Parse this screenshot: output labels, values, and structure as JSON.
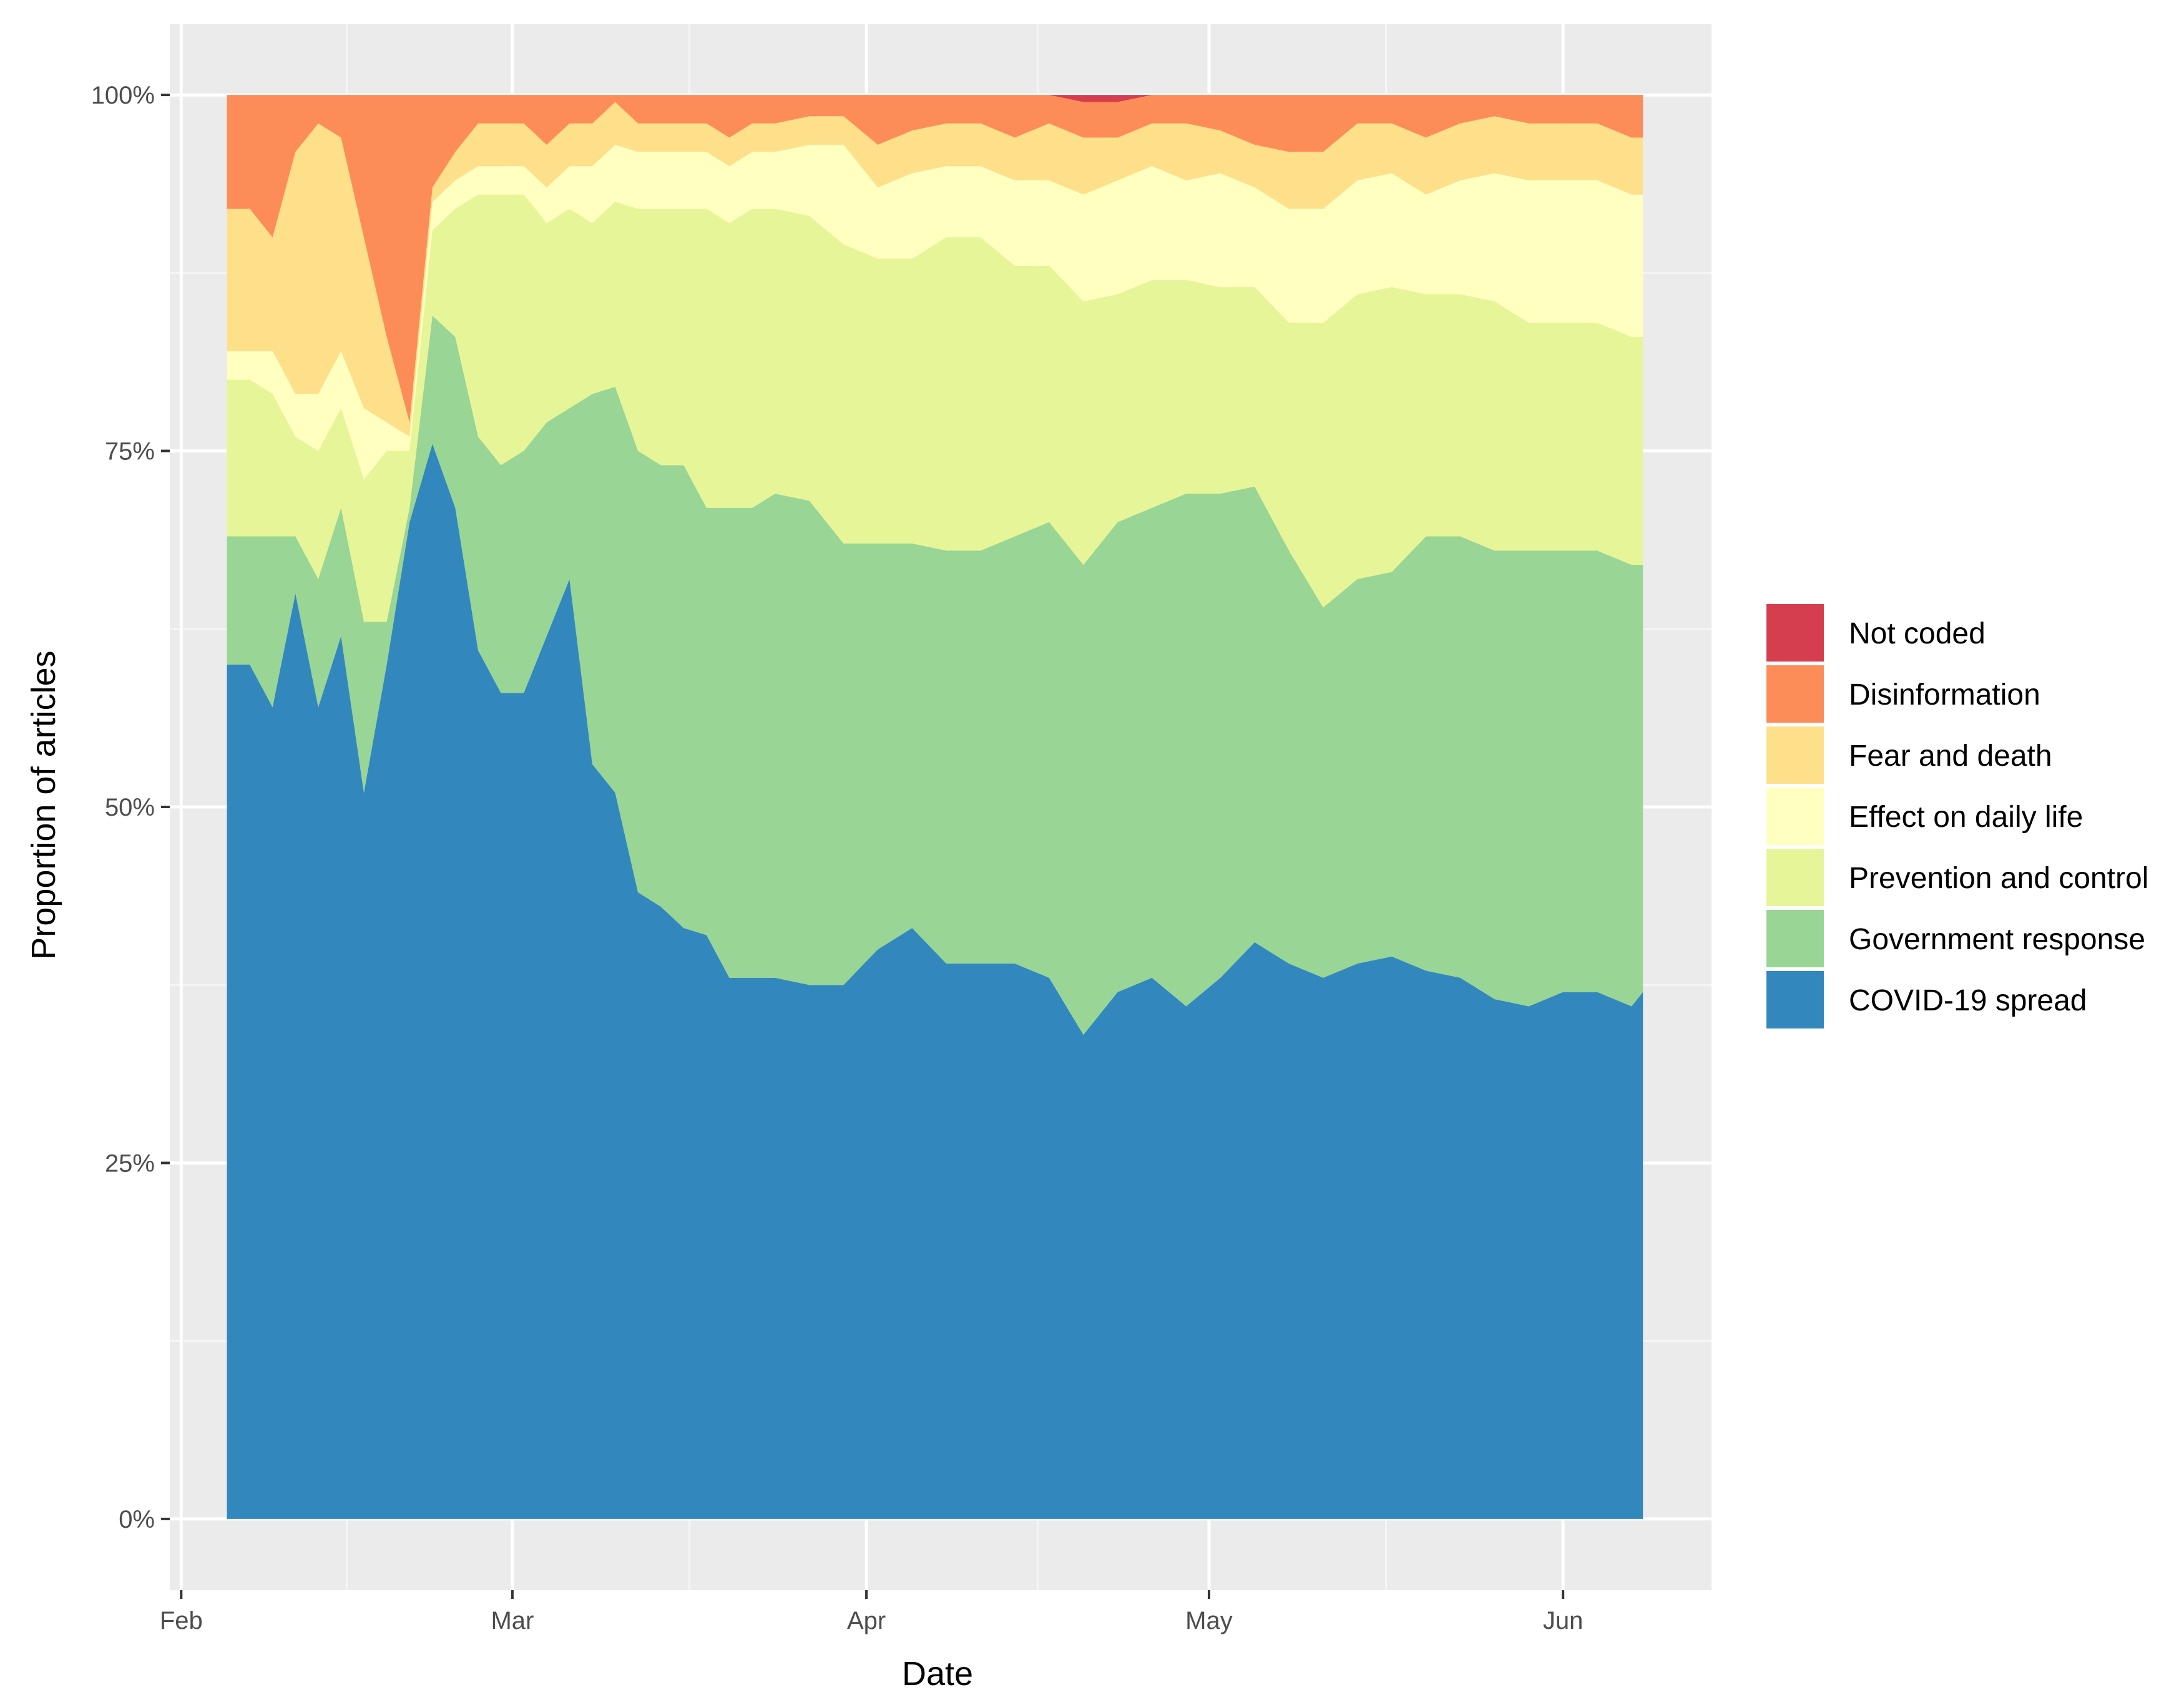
{
  "chart_data": {
    "type": "area",
    "stacked": true,
    "percent": true,
    "title": "",
    "xlabel": "Date",
    "ylabel": "Proportion of articles",
    "ylim": [
      -5,
      105
    ],
    "xlim_day": [
      -1,
      134
    ],
    "x_ticks": [
      {
        "label": "Feb",
        "day": 0
      },
      {
        "label": "Mar",
        "day": 29
      },
      {
        "label": "Apr",
        "day": 60
      },
      {
        "label": "May",
        "day": 90
      },
      {
        "label": "Jun",
        "day": 121
      }
    ],
    "y_ticks": [
      {
        "label": "0%",
        "value": 0
      },
      {
        "label": "25%",
        "value": 25
      },
      {
        "label": "50%",
        "value": 50
      },
      {
        "label": "75%",
        "value": 75
      },
      {
        "label": "100%",
        "value": 100
      }
    ],
    "grid": true,
    "legend_position": "right",
    "x_days": [
      4,
      6,
      8,
      10,
      12,
      14,
      16,
      18,
      20,
      22,
      24,
      26,
      28,
      30,
      32,
      34,
      36,
      38,
      40,
      42,
      44,
      46,
      48,
      50,
      52,
      55,
      58,
      61,
      64,
      67,
      70,
      73,
      76,
      79,
      82,
      85,
      88,
      91,
      94,
      97,
      100,
      103,
      106,
      109,
      112,
      115,
      118,
      121,
      124,
      127,
      128
    ],
    "series": [
      {
        "name": "COVID-19 spread",
        "color": "#3288bd",
        "values": [
          60,
          60,
          57,
          65,
          57,
          62,
          51,
          60,
          70,
          75.5,
          71,
          61,
          58,
          58,
          62,
          66,
          53,
          51,
          44,
          43,
          41.5,
          41,
          38,
          38,
          38,
          37.5,
          37.5,
          40,
          41.5,
          39,
          39,
          39,
          38,
          34,
          37,
          38,
          36,
          38,
          40.5,
          39,
          38,
          39,
          39.5,
          38.5,
          38,
          36.5,
          36,
          37,
          37,
          36,
          37
        ]
      },
      {
        "name": "Government response",
        "color": "#99d594",
        "values": [
          9,
          9,
          12,
          4,
          9,
          9,
          12,
          3,
          1,
          9,
          12,
          15,
          16,
          17,
          15,
          12,
          26,
          28.5,
          31,
          31,
          32.5,
          30,
          33,
          33,
          34,
          34,
          31,
          28.5,
          27,
          29,
          29,
          30,
          32,
          33,
          33,
          33,
          36,
          34,
          32,
          29,
          26,
          27,
          27,
          30.5,
          31,
          31.5,
          32,
          31,
          31,
          31,
          30
        ]
      },
      {
        "name": "Prevention and control",
        "color": "#e6f598",
        "values": [
          11,
          11,
          10,
          7,
          9,
          7,
          10,
          12,
          4,
          6,
          9,
          17,
          19,
          18,
          14,
          14,
          12,
          13,
          17,
          18,
          18,
          21,
          20,
          21,
          20,
          20,
          21,
          20,
          20,
          22,
          22,
          19,
          18,
          18.5,
          16,
          16,
          15,
          14.5,
          14,
          16,
          20,
          20,
          20,
          17,
          17,
          17.5,
          16,
          16,
          16,
          16,
          16
        ]
      },
      {
        "name": "Effect on daily life",
        "color": "#ffffbf",
        "values": [
          2,
          2,
          3,
          3,
          4,
          4,
          5,
          2,
          1,
          2,
          2,
          2,
          2,
          2,
          2.5,
          3,
          4,
          4,
          4,
          4,
          4,
          4,
          4,
          4,
          4,
          5,
          7,
          5,
          6,
          5,
          5,
          6,
          6,
          7.5,
          8,
          8,
          7,
          8,
          7,
          8,
          8,
          8,
          8,
          7,
          8,
          9,
          10,
          10,
          10,
          10,
          10
        ]
      },
      {
        "name": "Fear and death",
        "color": "#fee08b",
        "values": [
          10,
          10,
          8,
          17,
          19,
          15,
          12,
          6,
          1,
          1,
          2,
          3,
          3,
          3,
          3,
          3,
          3,
          3,
          2,
          2,
          2,
          2,
          2,
          2,
          2,
          2,
          2,
          3,
          3,
          3,
          3,
          3,
          4,
          4,
          3,
          3,
          4,
          3,
          3,
          4,
          4,
          4,
          3.5,
          4,
          4,
          4,
          4,
          4,
          4,
          4,
          4
        ]
      },
      {
        "name": "Disinformation",
        "color": "#fc8d59",
        "values": [
          8,
          8,
          10,
          4,
          2,
          3,
          10,
          17,
          23,
          6.5,
          4,
          2,
          2,
          2,
          3.5,
          2,
          2,
          0.5,
          2,
          2,
          2,
          2,
          3,
          2,
          2,
          1.5,
          1.5,
          3.5,
          2.5,
          2,
          2,
          3,
          2,
          2.5,
          2.5,
          2,
          2,
          2.5,
          3.5,
          4,
          4,
          2,
          2,
          3,
          2,
          1.5,
          2,
          2,
          2,
          3,
          3
        ]
      },
      {
        "name": "Not coded",
        "color": "#d53e4f",
        "values": [
          0,
          0,
          0,
          0,
          0,
          0,
          0,
          0,
          0,
          0,
          0,
          0,
          0,
          0,
          0,
          0,
          0,
          0,
          0,
          0,
          0,
          0,
          0,
          0,
          0,
          0,
          0,
          0,
          0,
          0,
          0,
          0,
          0,
          0.5,
          0.5,
          0,
          0,
          0,
          0,
          0,
          0,
          0,
          0,
          0,
          0,
          0,
          0,
          0,
          0,
          0,
          0
        ]
      }
    ],
    "legend_order": [
      "Not coded",
      "Disinformation",
      "Fear and death",
      "Effect on daily life",
      "Prevention and control",
      "Government response",
      "COVID-19 spread"
    ]
  }
}
